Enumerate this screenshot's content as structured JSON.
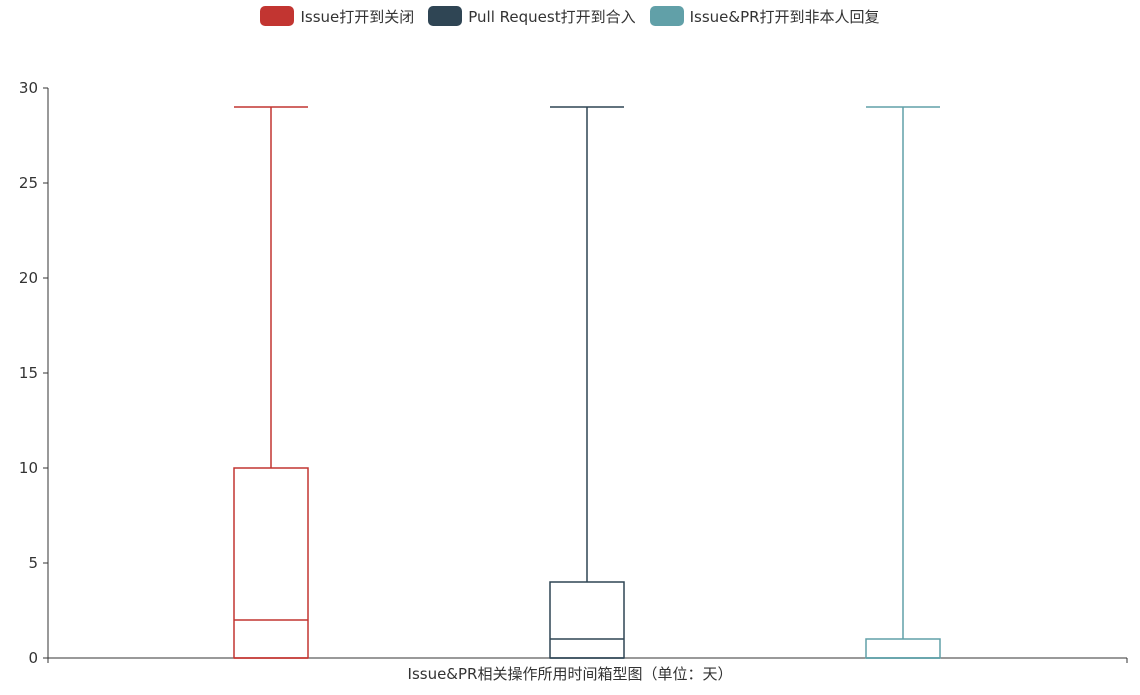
{
  "chart_data": {
    "type": "boxplot",
    "xlabel": "Issue&PR相关操作所用时间箱型图（单位：天）",
    "ylabel": "",
    "ylim": [
      0,
      30
    ],
    "yticks": [
      0,
      5,
      10,
      15,
      20,
      25,
      30
    ],
    "grid": false,
    "legend_position": "top-center",
    "series": [
      {
        "name": "Issue打开到关闭",
        "color": "#c23531",
        "min": 0,
        "q1": 0,
        "median": 2,
        "q3": 10,
        "max": 29
      },
      {
        "name": "Pull Request打开到合入",
        "color": "#2f4554",
        "min": 0,
        "q1": 0,
        "median": 1,
        "q3": 4,
        "max": 29
      },
      {
        "name": "Issue&PR打开到非本人回复",
        "color": "#61a0a8",
        "min": 0,
        "q1": 0,
        "median": 0,
        "q3": 1,
        "max": 29
      }
    ]
  }
}
